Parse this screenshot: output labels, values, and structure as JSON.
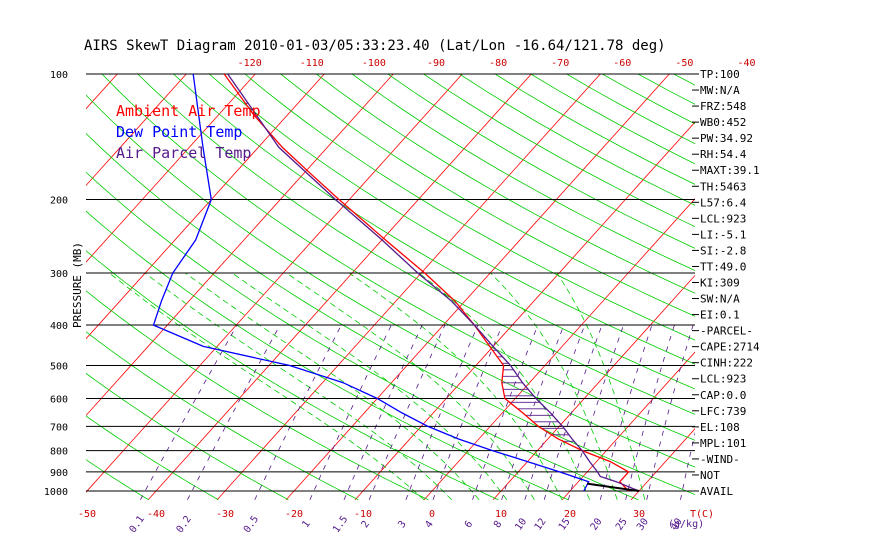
{
  "chart_data": {
    "type": "line",
    "title": "AIRS SkewT Diagram 2010-01-03/05:33:23.40 (Lat/Lon -16.64/121.78 deg)",
    "ylabel": "PRESSURE (MB)",
    "xlabel_bottom": "T(C)",
    "mixing_ratio_label": "(g/kg)",
    "ylim": [
      1050,
      100
    ],
    "y_log_scale": true,
    "y_ticks": [
      100,
      200,
      300,
      400,
      500,
      600,
      700,
      800,
      900,
      1000
    ],
    "y_tick_labels": [
      "100",
      "200",
      "300",
      "400",
      "500",
      "600",
      "700",
      "800",
      "900",
      "1000"
    ],
    "x_bottom_ticks": [
      -50,
      -40,
      -30,
      -20,
      -10,
      0,
      10,
      20,
      30
    ],
    "x_bottom_tick_labels": [
      "-50",
      "-40",
      "-30",
      "-20",
      "-10",
      "0",
      "10",
      "20",
      "30"
    ],
    "x_top_ticks": [
      -120,
      -110,
      -100,
      -90,
      -80,
      -70,
      -60,
      -50,
      -40
    ],
    "x_top_tick_labels": [
      "-120",
      "-110",
      "-100",
      "-90",
      "-80",
      "-70",
      "-60",
      "-50",
      "-40"
    ],
    "mixing_ratio_ticks": [
      0.1,
      0.2,
      0.5,
      1,
      1.5,
      2,
      3,
      4,
      6,
      8,
      10,
      12,
      15,
      20,
      25,
      30,
      40
    ],
    "mixing_ratio_tick_labels": [
      "0.1",
      "0.2",
      "0.5",
      "1",
      "1.5",
      "2",
      "3",
      "4",
      "6",
      "8",
      "10",
      "12",
      "15",
      "20",
      "25",
      "30",
      "40"
    ],
    "legend_placement": "top-left",
    "series": [
      {
        "name": "Ambient Air Temp",
        "color": "#ff0000",
        "pressure": [
          1000,
          950,
          900,
          850,
          800,
          750,
          700,
          650,
          600,
          550,
          500,
          450,
          400,
          350,
          300,
          250,
          200,
          175,
          150,
          125,
          100
        ],
        "temperature": [
          28.5,
          26.0,
          26.0,
          22.0,
          16.5,
          11.5,
          7.0,
          3.0,
          -1.5,
          -4.0,
          -6.0,
          -10.5,
          -15.5,
          -21.5,
          -29.5,
          -39.5,
          -51.5,
          -58.5,
          -66.5,
          -75.0,
          -84.5
        ]
      },
      {
        "name": "Dew Point Temp",
        "color": "#0000ff",
        "pressure": [
          1000,
          950,
          900,
          850,
          800,
          750,
          700,
          650,
          600,
          550,
          500,
          450,
          400,
          350,
          300,
          250,
          200,
          150,
          100
        ],
        "temperature": [
          22.0,
          21.5,
          16.0,
          10.0,
          3.5,
          -3.0,
          -9.0,
          -14.5,
          -20.0,
          -27.0,
          -37.0,
          -52.0,
          -62.0,
          -64.0,
          -66.0,
          -67.0,
          -70.0,
          -78.0,
          -89.0
        ]
      },
      {
        "name": "Air Parcel Temp",
        "color": "#551a8b",
        "pressure": [
          1000,
          950,
          923,
          900,
          850,
          800,
          750,
          700,
          650,
          600,
          550,
          500,
          450,
          400,
          350,
          300,
          250,
          200,
          150,
          100
        ],
        "temperature": [
          30.0,
          25.5,
          22.5,
          21.5,
          19.0,
          16.5,
          13.5,
          10.5,
          7.0,
          3.0,
          -1.0,
          -5.0,
          -10.0,
          -15.5,
          -22.0,
          -30.5,
          -40.0,
          -52.0,
          -67.0,
          -84.0
        ]
      }
    ],
    "indices": [
      "TP:100",
      "MW:N/A",
      "FRZ:548",
      "WB0:452",
      "PW:34.92",
      "RH:54.4",
      "MAXT:39.1",
      "TH:5463",
      "L57:6.4",
      "LCL:923",
      "LI:-5.1",
      "SI:-2.8",
      "TT:49.0",
      "KI:309",
      "SW:N/A",
      "EI:0.1",
      "-PARCEL-",
      "CAPE:2714",
      "CINH:222",
      "LCL:923",
      "CAP:0.0",
      "LFC:739",
      "EL:108",
      "MPL:101",
      "-WIND-",
      "NOT",
      "AVAIL"
    ],
    "colors": {
      "dry_adiabat": "#ff0000",
      "moist_adiabat": "#00cc00",
      "mixing_ratio": "#551a8b",
      "isobar": "#000000",
      "hatch": "#551a8b"
    }
  }
}
